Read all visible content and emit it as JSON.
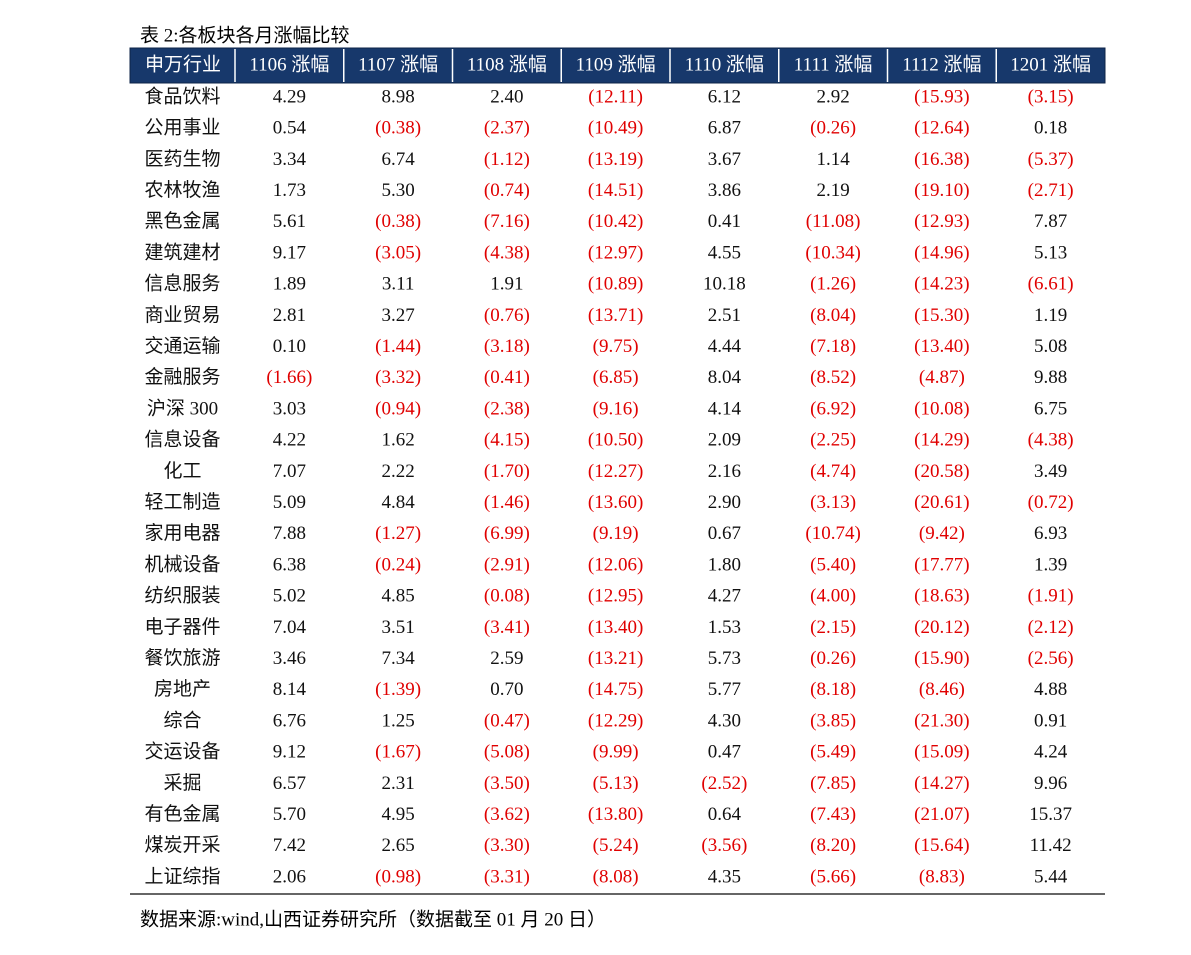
{
  "title": "表 2:各板块各月涨幅比较",
  "table": {
    "header": [
      "申万行业",
      "1106 涨幅",
      "1107 涨幅",
      "1108 涨幅",
      "1109 涨幅",
      "1110 涨幅",
      "1111 涨幅",
      "1112 涨幅",
      "1201 涨幅"
    ],
    "rows": [
      [
        "食品饮料",
        "4.29",
        "8.98",
        "2.40",
        "(12.11)",
        "6.12",
        "2.92",
        "(15.93)",
        "(3.15)"
      ],
      [
        "公用事业",
        "0.54",
        "(0.38)",
        "(2.37)",
        "(10.49)",
        "6.87",
        "(0.26)",
        "(12.64)",
        "0.18"
      ],
      [
        "医药生物",
        "3.34",
        "6.74",
        "(1.12)",
        "(13.19)",
        "3.67",
        "1.14",
        "(16.38)",
        "(5.37)"
      ],
      [
        "农林牧渔",
        "1.73",
        "5.30",
        "(0.74)",
        "(14.51)",
        "3.86",
        "2.19",
        "(19.10)",
        "(2.71)"
      ],
      [
        "黑色金属",
        "5.61",
        "(0.38)",
        "(7.16)",
        "(10.42)",
        "0.41",
        "(11.08)",
        "(12.93)",
        "7.87"
      ],
      [
        "建筑建材",
        "9.17",
        "(3.05)",
        "(4.38)",
        "(12.97)",
        "4.55",
        "(10.34)",
        "(14.96)",
        "5.13"
      ],
      [
        "信息服务",
        "1.89",
        "3.11",
        "1.91",
        "(10.89)",
        "10.18",
        "(1.26)",
        "(14.23)",
        "(6.61)"
      ],
      [
        "商业贸易",
        "2.81",
        "3.27",
        "(0.76)",
        "(13.71)",
        "2.51",
        "(8.04)",
        "(15.30)",
        "1.19"
      ],
      [
        "交通运输",
        "0.10",
        "(1.44)",
        "(3.18)",
        "(9.75)",
        "4.44",
        "(7.18)",
        "(13.40)",
        "5.08"
      ],
      [
        "金融服务",
        "(1.66)",
        "(3.32)",
        "(0.41)",
        "(6.85)",
        "8.04",
        "(8.52)",
        "(4.87)",
        "9.88"
      ],
      [
        "沪深 300",
        "3.03",
        "(0.94)",
        "(2.38)",
        "(9.16)",
        "4.14",
        "(6.92)",
        "(10.08)",
        "6.75"
      ],
      [
        "信息设备",
        "4.22",
        "1.62",
        "(4.15)",
        "(10.50)",
        "2.09",
        "(2.25)",
        "(14.29)",
        "(4.38)"
      ],
      [
        "化工",
        "7.07",
        "2.22",
        "(1.70)",
        "(12.27)",
        "2.16",
        "(4.74)",
        "(20.58)",
        "3.49"
      ],
      [
        "轻工制造",
        "5.09",
        "4.84",
        "(1.46)",
        "(13.60)",
        "2.90",
        "(3.13)",
        "(20.61)",
        "(0.72)"
      ],
      [
        "家用电器",
        "7.88",
        "(1.27)",
        "(6.99)",
        "(9.19)",
        "0.67",
        "(10.74)",
        "(9.42)",
        "6.93"
      ],
      [
        "机械设备",
        "6.38",
        "(0.24)",
        "(2.91)",
        "(12.06)",
        "1.80",
        "(5.40)",
        "(17.77)",
        "1.39"
      ],
      [
        "纺织服装",
        "5.02",
        "4.85",
        "(0.08)",
        "(12.95)",
        "4.27",
        "(4.00)",
        "(18.63)",
        "(1.91)"
      ],
      [
        "电子器件",
        "7.04",
        "3.51",
        "(3.41)",
        "(13.40)",
        "1.53",
        "(2.15)",
        "(20.12)",
        "(2.12)"
      ],
      [
        "餐饮旅游",
        "3.46",
        "7.34",
        "2.59",
        "(13.21)",
        "5.73",
        "(0.26)",
        "(15.90)",
        "(2.56)"
      ],
      [
        "房地产",
        "8.14",
        "(1.39)",
        "0.70",
        "(14.75)",
        "5.77",
        "(8.18)",
        "(8.46)",
        "4.88"
      ],
      [
        "综合",
        "6.76",
        "1.25",
        "(0.47)",
        "(12.29)",
        "4.30",
        "(3.85)",
        "(21.30)",
        "0.91"
      ],
      [
        "交运设备",
        "9.12",
        "(1.67)",
        "(5.08)",
        "(9.99)",
        "0.47",
        "(5.49)",
        "(15.09)",
        "4.24"
      ],
      [
        "采掘",
        "6.57",
        "2.31",
        "(3.50)",
        "(5.13)",
        "(2.52)",
        "(7.85)",
        "(14.27)",
        "9.96"
      ],
      [
        "有色金属",
        "5.70",
        "4.95",
        "(3.62)",
        "(13.80)",
        "0.64",
        "(7.43)",
        "(21.07)",
        "15.37"
      ],
      [
        "煤炭开采",
        "7.42",
        "2.65",
        "(3.30)",
        "(5.24)",
        "(3.56)",
        "(8.20)",
        "(15.64)",
        "11.42"
      ],
      [
        "上证综指",
        "2.06",
        "(0.98)",
        "(3.31)",
        "(8.08)",
        "4.35",
        "(5.66)",
        "(8.83)",
        "5.44"
      ]
    ]
  },
  "source": "数据来源:wind,山西证券研究所（数据截至 01 月 20 日）"
}
